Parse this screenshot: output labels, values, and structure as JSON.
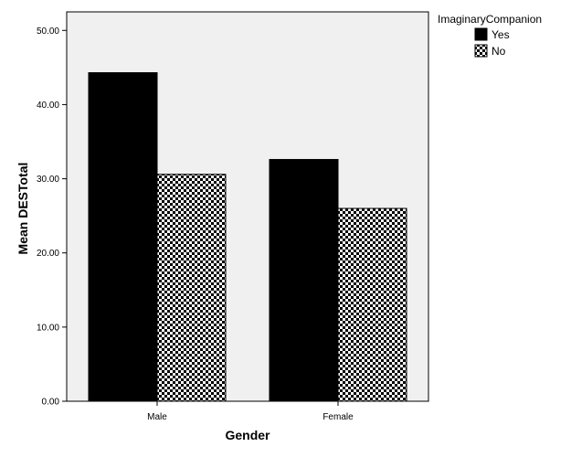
{
  "chart_data": {
    "type": "bar",
    "xlabel": "Gender",
    "ylabel": "Mean DESTotal",
    "categories": [
      "Male",
      "Female"
    ],
    "series": [
      {
        "name": "Yes",
        "values": [
          44.3,
          32.6
        ],
        "pattern": "solid",
        "color": "#000000"
      },
      {
        "name": "No",
        "values": [
          30.6,
          26.0
        ],
        "pattern": "checker",
        "color": "#000000"
      }
    ],
    "ylim": [
      0,
      52.5
    ],
    "yticks": [
      "0.00",
      "10.00",
      "20.00",
      "30.00",
      "40.00",
      "50.00"
    ],
    "legend": {
      "title": "ImaginaryCompanion",
      "placement": "top-right-outside"
    },
    "plot_background": "#f0f0f0",
    "grid": false
  }
}
